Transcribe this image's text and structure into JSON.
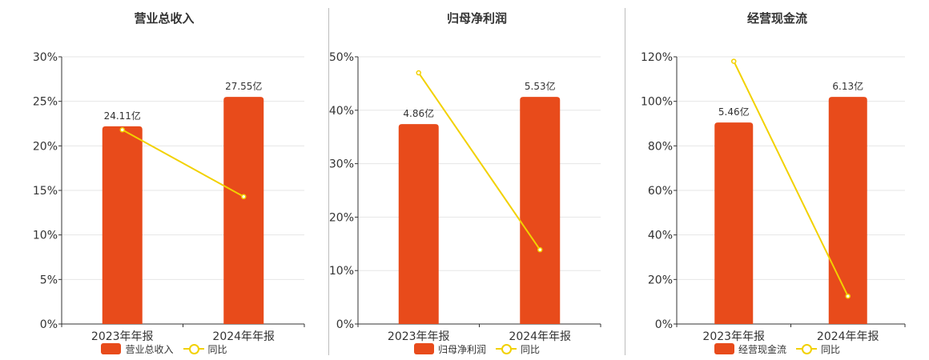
{
  "colors": {
    "bar": "#E84B1B",
    "line": "#F2D100",
    "grid": "#e6e6e6",
    "axis": "#333333"
  },
  "legend": {
    "line_label": "同比"
  },
  "chart_data": [
    {
      "type": "bar",
      "title": "营业总收入",
      "categories": [
        "2023年年报",
        "2024年年报"
      ],
      "series": [
        {
          "name": "营业总收入",
          "type": "bar",
          "values": [
            22.2,
            25.5
          ],
          "labels": [
            "24.11亿",
            "27.55亿"
          ]
        },
        {
          "name": "同比",
          "type": "line",
          "values": [
            21.8,
            14.3
          ]
        }
      ],
      "ylim": [
        0,
        30
      ],
      "yticks": [
        "0%",
        "5%",
        "10%",
        "15%",
        "20%",
        "25%",
        "30%"
      ],
      "grid": true,
      "legend_position": "bottom"
    },
    {
      "type": "bar",
      "title": "归母净利润",
      "categories": [
        "2023年年报",
        "2024年年报"
      ],
      "series": [
        {
          "name": "归母净利润",
          "type": "bar",
          "values": [
            37.4,
            42.5
          ],
          "labels": [
            "4.86亿",
            "5.53亿"
          ]
        },
        {
          "name": "同比",
          "type": "line",
          "values": [
            47.0,
            13.9
          ]
        }
      ],
      "ylim": [
        0,
        50
      ],
      "yticks": [
        "0%",
        "10%",
        "20%",
        "30%",
        "40%",
        "50%"
      ],
      "grid": true,
      "legend_position": "bottom"
    },
    {
      "type": "bar",
      "title": "经营现金流",
      "categories": [
        "2023年年报",
        "2024年年报"
      ],
      "series": [
        {
          "name": "经营现金流",
          "type": "bar",
          "values": [
            90.5,
            102
          ],
          "labels": [
            "5.46亿",
            "6.13亿"
          ]
        },
        {
          "name": "同比",
          "type": "line",
          "values": [
            118,
            12.5
          ]
        }
      ],
      "ylim": [
        0,
        120
      ],
      "yticks": [
        "0%",
        "20%",
        "40%",
        "60%",
        "80%",
        "100%",
        "120%"
      ],
      "grid": true,
      "legend_position": "bottom"
    }
  ]
}
